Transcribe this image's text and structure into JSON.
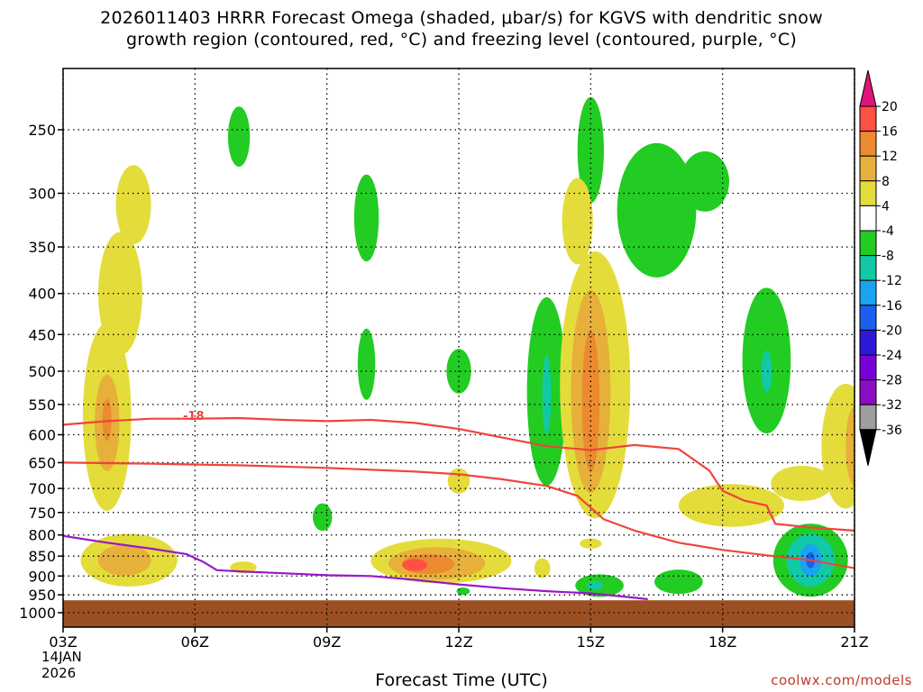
{
  "title": "2026011403 HRRR Forecast Omega (shaded, μbar/s) for KGVS with dendritic snow\ngrowth region (contoured, red, °C) and freezing level (contoured, purple, °C)",
  "credit": "coolwx.com/models",
  "chart_data": {
    "type": "heatmap",
    "title": "2026011403 HRRR Forecast Omega (shaded, μbar/s) for KGVS with dendritic snow growth region (contoured, red, °C) and freezing level (contoured, purple, °C)",
    "xlabel": "Forecast Time (UTC)",
    "x_ticks": [
      "03Z",
      "06Z",
      "09Z",
      "12Z",
      "15Z",
      "18Z",
      "21Z"
    ],
    "x_tick_hours": [
      3,
      6,
      9,
      12,
      15,
      18,
      21
    ],
    "x_date_label": [
      "14JAN",
      "2026"
    ],
    "xlim": [
      3,
      21
    ],
    "y_ticks": [
      250,
      300,
      350,
      400,
      450,
      500,
      550,
      600,
      650,
      700,
      750,
      800,
      850,
      900,
      950,
      1000
    ],
    "y_tick_labels": [
      "250",
      "300",
      "350",
      "400",
      "450",
      "500",
      "550",
      "600",
      "650",
      "700",
      "750",
      "800",
      "850",
      "900",
      "950",
      "1000"
    ],
    "ylim": [
      1000,
      200
    ],
    "y_scale": "log",
    "grid": true,
    "colorbar": {
      "levels": [
        -36,
        -32,
        -28,
        -24,
        -20,
        -16,
        -12,
        -8,
        -4,
        4,
        8,
        12,
        16,
        20
      ],
      "labels": [
        "-36",
        "-32",
        "-28",
        "-24",
        "-20",
        "-16",
        "-12",
        "-8",
        "-4",
        "4",
        "8",
        "12",
        "16",
        "20"
      ],
      "colors": [
        "#9e9e9e",
        "#8a0ec4",
        "#7a00d8",
        "#2d17d9",
        "#1a5ff0",
        "#1aa3ef",
        "#12c9a5",
        "#22cc22",
        "#ffffff",
        "#e4dc3a",
        "#e6b03a",
        "#ec8a30",
        "#ff5044"
      ],
      "below_color": "#000000",
      "above_color": "#e0157a"
    },
    "ground": {
      "top_pressure": 965,
      "color": "#9b4f23"
    },
    "contour_label": "-18",
    "contours": [
      {
        "name": "dgz_top",
        "color": "#f0443c",
        "label": "-18",
        "points": [
          [
            3,
            583
          ],
          [
            4,
            577
          ],
          [
            5,
            573
          ],
          [
            6,
            573
          ],
          [
            7,
            572
          ],
          [
            8,
            575
          ],
          [
            9,
            577
          ],
          [
            10,
            575
          ],
          [
            11,
            580
          ],
          [
            12,
            590
          ],
          [
            13,
            605
          ],
          [
            14,
            620
          ],
          [
            15,
            627
          ],
          [
            16,
            618
          ],
          [
            17,
            625
          ],
          [
            17.7,
            665
          ],
          [
            18,
            705
          ],
          [
            18.5,
            725
          ],
          [
            19,
            735
          ],
          [
            19.2,
            775
          ],
          [
            20,
            783
          ],
          [
            21,
            790
          ]
        ]
      },
      {
        "name": "dgz_bottom",
        "color": "#f0443c",
        "points": [
          [
            3,
            650
          ],
          [
            5,
            652
          ],
          [
            7,
            655
          ],
          [
            9,
            660
          ],
          [
            11,
            667
          ],
          [
            12,
            672
          ],
          [
            13,
            682
          ],
          [
            14,
            695
          ],
          [
            14.7,
            715
          ],
          [
            15.3,
            765
          ],
          [
            16,
            790
          ],
          [
            17,
            818
          ],
          [
            18,
            835
          ],
          [
            19,
            848
          ],
          [
            20,
            860
          ],
          [
            21,
            880
          ]
        ]
      },
      {
        "name": "freezing_level",
        "color": "#9b17c7",
        "points": [
          [
            3,
            802
          ],
          [
            4,
            818
          ],
          [
            5,
            832
          ],
          [
            5.8,
            845
          ],
          [
            6.2,
            865
          ],
          [
            6.5,
            885
          ],
          [
            7,
            888
          ],
          [
            8,
            893
          ],
          [
            9,
            898
          ],
          [
            10,
            900
          ],
          [
            11,
            910
          ],
          [
            12,
            922
          ],
          [
            13,
            932
          ],
          [
            14,
            940
          ],
          [
            15,
            946
          ],
          [
            16,
            958
          ],
          [
            16.3,
            962
          ]
        ]
      }
    ],
    "cells": [
      {
        "x": 4.0,
        "p": 570,
        "rx": 0.55,
        "ry": 150,
        "v": 6
      },
      {
        "x": 4.0,
        "p": 580,
        "rx": 0.28,
        "ry": 80,
        "v": 10
      },
      {
        "x": 4.0,
        "p": 575,
        "rx": 0.1,
        "ry": 35,
        "v": 13
      },
      {
        "x": 4.3,
        "p": 400,
        "rx": 0.5,
        "ry": 70,
        "v": 6
      },
      {
        "x": 4.6,
        "p": 310,
        "rx": 0.4,
        "ry": 35,
        "v": 6
      },
      {
        "x": 4.5,
        "p": 860,
        "rx": 1.1,
        "ry": 65,
        "v": 6
      },
      {
        "x": 4.4,
        "p": 860,
        "rx": 0.6,
        "ry": 38,
        "v": 10
      },
      {
        "x": 7.1,
        "p": 878,
        "rx": 0.3,
        "ry": 15,
        "v": 6
      },
      {
        "x": 7.0,
        "p": 255,
        "rx": 0.25,
        "ry": 22,
        "v": -6
      },
      {
        "x": 9.9,
        "p": 322,
        "rx": 0.28,
        "ry": 40,
        "v": -6
      },
      {
        "x": 9.9,
        "p": 490,
        "rx": 0.2,
        "ry": 50,
        "v": -6
      },
      {
        "x": 8.9,
        "p": 760,
        "rx": 0.22,
        "ry": 30,
        "v": -6
      },
      {
        "x": 12.0,
        "p": 500,
        "rx": 0.28,
        "ry": 32,
        "v": -6
      },
      {
        "x": 12.0,
        "p": 685,
        "rx": 0.25,
        "ry": 25,
        "v": 6
      },
      {
        "x": 12.1,
        "p": 940,
        "rx": 0.15,
        "ry": 10,
        "v": -6
      },
      {
        "x": 11.6,
        "p": 862,
        "rx": 1.6,
        "ry": 55,
        "v": 6
      },
      {
        "x": 11.5,
        "p": 868,
        "rx": 1.1,
        "ry": 40,
        "v": 10
      },
      {
        "x": 11.3,
        "p": 870,
        "rx": 0.6,
        "ry": 25,
        "v": 13
      },
      {
        "x": 11.0,
        "p": 872,
        "rx": 0.28,
        "ry": 15,
        "v": 17
      },
      {
        "x": 13.9,
        "p": 880,
        "rx": 0.18,
        "ry": 25,
        "v": 6
      },
      {
        "x": 14.0,
        "p": 530,
        "rx": 0.45,
        "ry": 140,
        "v": -6
      },
      {
        "x": 14.0,
        "p": 535,
        "rx": 0.1,
        "ry": 60,
        "v": -10
      },
      {
        "x": 15.0,
        "p": 265,
        "rx": 0.3,
        "ry": 40,
        "v": -6
      },
      {
        "x": 14.7,
        "p": 325,
        "rx": 0.35,
        "ry": 40,
        "v": 6
      },
      {
        "x": 15.1,
        "p": 520,
        "rx": 0.8,
        "ry": 190,
        "v": 6
      },
      {
        "x": 15.0,
        "p": 530,
        "rx": 0.45,
        "ry": 150,
        "v": 10
      },
      {
        "x": 15.0,
        "p": 545,
        "rx": 0.2,
        "ry": 110,
        "v": 13
      },
      {
        "x": 15.0,
        "p": 820,
        "rx": 0.25,
        "ry": 12,
        "v": 6
      },
      {
        "x": 15.2,
        "p": 925,
        "rx": 0.55,
        "ry": 30,
        "v": -6
      },
      {
        "x": 15.1,
        "p": 925,
        "rx": 0.18,
        "ry": 12,
        "v": -10
      },
      {
        "x": 16.5,
        "p": 315,
        "rx": 0.9,
        "ry": 60,
        "v": -6
      },
      {
        "x": 17.6,
        "p": 290,
        "rx": 0.55,
        "ry": 25,
        "v": -6
      },
      {
        "x": 17.0,
        "p": 915,
        "rx": 0.55,
        "ry": 32,
        "v": -6
      },
      {
        "x": 19.0,
        "p": 485,
        "rx": 0.55,
        "ry": 100,
        "v": -6
      },
      {
        "x": 19.0,
        "p": 500,
        "rx": 0.12,
        "ry": 30,
        "v": -10
      },
      {
        "x": 18.2,
        "p": 735,
        "rx": 1.2,
        "ry": 45,
        "v": 6
      },
      {
        "x": 19.8,
        "p": 690,
        "rx": 0.7,
        "ry": 35,
        "v": 6
      },
      {
        "x": 20.8,
        "p": 620,
        "rx": 0.55,
        "ry": 110,
        "v": 6
      },
      {
        "x": 21.0,
        "p": 620,
        "rx": 0.2,
        "ry": 70,
        "v": 10
      },
      {
        "x": 20.0,
        "p": 860,
        "rx": 0.85,
        "ry": 90,
        "v": -6
      },
      {
        "x": 20.0,
        "p": 860,
        "rx": 0.55,
        "ry": 65,
        "v": -10
      },
      {
        "x": 20.0,
        "p": 860,
        "rx": 0.25,
        "ry": 40,
        "v": -14
      },
      {
        "x": 20.0,
        "p": 860,
        "rx": 0.1,
        "ry": 20,
        "v": -18
      }
    ]
  }
}
